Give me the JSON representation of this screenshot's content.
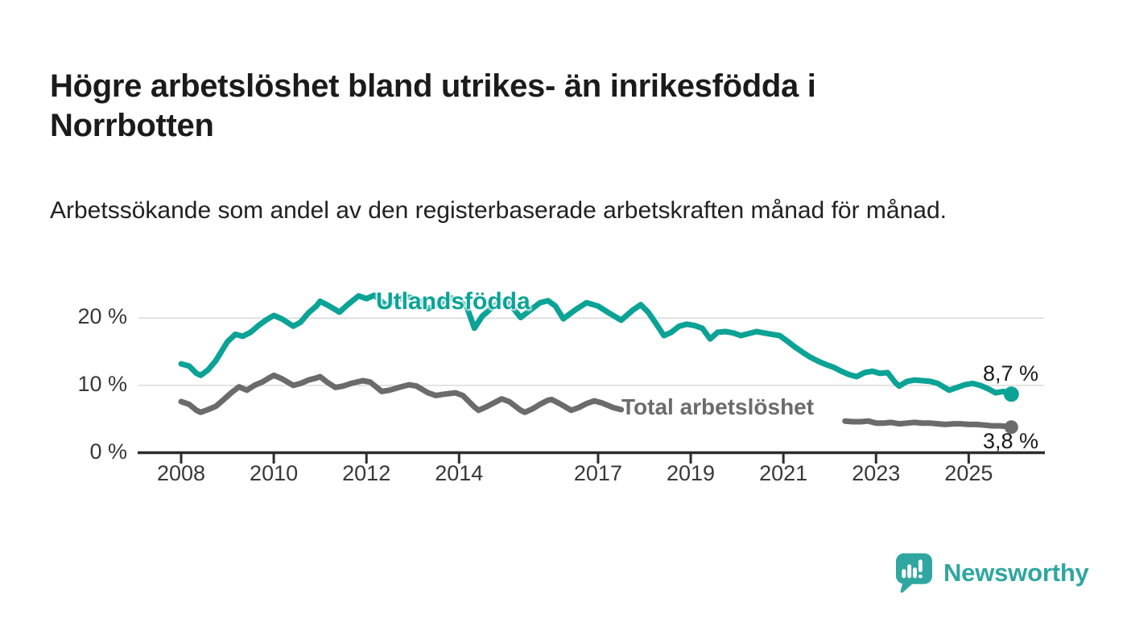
{
  "header": {
    "title": "Högre arbetslöshet bland utrikes- än inrikesfödda i Norrbotten",
    "subtitle": "Arbetssökande som andel av den registerbaserade arbetskraften månad för månad."
  },
  "chart_data": {
    "type": "line",
    "title": "Högre arbetslöshet bland utrikes- än inrikesfödda i Norrbotten",
    "subtitle": "Arbetssökande som andel av den registerbaserade arbetskraften månad för månad.",
    "x_unit": "year (monthly observations)",
    "y_unit": "percent of registered labour force",
    "xlim": [
      2007.1,
      2026.7
    ],
    "ylim": [
      0,
      24
    ],
    "grid": "horizontal",
    "legend_position": "inline-labels-on-lines",
    "yticks": [
      {
        "value": 0,
        "label": "0 %"
      },
      {
        "value": 10,
        "label": "10 %"
      },
      {
        "value": 20,
        "label": "20 %"
      }
    ],
    "xticks": [
      {
        "value": 2008,
        "label": "2008"
      },
      {
        "value": 2010,
        "label": "2010"
      },
      {
        "value": 2012,
        "label": "2012"
      },
      {
        "value": 2014,
        "label": "2014"
      },
      {
        "value": 2017,
        "label": "2017"
      },
      {
        "value": 2019,
        "label": "2019"
      },
      {
        "value": 2021,
        "label": "2021"
      },
      {
        "value": 2023,
        "label": "2023"
      },
      {
        "value": 2025,
        "label": "2025"
      }
    ],
    "series": [
      {
        "name": "Utlandsfödda",
        "color": "#0ba396",
        "end_label": "8,7 %",
        "end_value": 8.7,
        "end_dot": true,
        "segments": [
          [
            [
              2008.0,
              13.2
            ],
            [
              2008.17,
              12.9
            ],
            [
              2008.33,
              11.8
            ],
            [
              2008.42,
              11.5
            ],
            [
              2008.58,
              12.3
            ],
            [
              2008.75,
              13.7
            ],
            [
              2008.92,
              15.6
            ],
            [
              2009.0,
              16.5
            ],
            [
              2009.17,
              17.6
            ],
            [
              2009.33,
              17.3
            ],
            [
              2009.5,
              17.9
            ],
            [
              2009.67,
              18.9
            ],
            [
              2009.83,
              19.7
            ],
            [
              2010.0,
              20.4
            ],
            [
              2010.17,
              19.9
            ],
            [
              2010.42,
              18.8
            ],
            [
              2010.58,
              19.4
            ],
            [
              2010.75,
              20.8
            ],
            [
              2010.92,
              21.8
            ],
            [
              2011.0,
              22.5
            ],
            [
              2011.17,
              21.9
            ],
            [
              2011.42,
              20.9
            ],
            [
              2011.58,
              21.9
            ],
            [
              2011.83,
              23.3
            ],
            [
              2012.0,
              22.9
            ],
            [
              2012.17,
              23.4
            ],
            [
              2012.42,
              21.9
            ],
            [
              2012.58,
              22.4
            ],
            [
              2012.83,
              23.2
            ],
            [
              2013.0,
              23.0
            ],
            [
              2013.17,
              22.5
            ],
            [
              2013.33,
              21.4
            ],
            [
              2013.58,
              22.2
            ],
            [
              2013.83,
              23.0
            ],
            [
              2014.0,
              22.6
            ],
            [
              2014.17,
              21.6
            ],
            [
              2014.33,
              18.5
            ],
            [
              2014.5,
              20.3
            ],
            [
              2014.75,
              21.8
            ],
            [
              2014.92,
              22.5
            ],
            [
              2015.08,
              22.2
            ],
            [
              2015.33,
              20.1
            ],
            [
              2015.5,
              21.0
            ],
            [
              2015.75,
              22.3
            ],
            [
              2015.92,
              22.6
            ],
            [
              2016.08,
              21.8
            ],
            [
              2016.25,
              19.9
            ],
            [
              2016.5,
              21.2
            ],
            [
              2016.75,
              22.3
            ],
            [
              2017.0,
              21.8
            ],
            [
              2017.25,
              20.7
            ],
            [
              2017.5,
              19.7
            ],
            [
              2017.75,
              21.2
            ],
            [
              2017.92,
              22.0
            ],
            [
              2018.08,
              20.9
            ],
            [
              2018.25,
              19.2
            ],
            [
              2018.42,
              17.4
            ],
            [
              2018.58,
              17.9
            ],
            [
              2018.75,
              18.8
            ],
            [
              2018.92,
              19.1
            ],
            [
              2019.08,
              18.9
            ],
            [
              2019.25,
              18.5
            ],
            [
              2019.42,
              16.9
            ],
            [
              2019.58,
              17.9
            ],
            [
              2019.75,
              18.0
            ],
            [
              2019.92,
              17.8
            ],
            [
              2020.08,
              17.4
            ],
            [
              2020.25,
              17.7
            ],
            [
              2020.42,
              18.0
            ],
            [
              2020.58,
              17.8
            ],
            [
              2020.75,
              17.6
            ],
            [
              2020.92,
              17.4
            ],
            [
              2021.08,
              16.6
            ],
            [
              2021.25,
              15.7
            ],
            [
              2021.42,
              14.9
            ],
            [
              2021.58,
              14.2
            ],
            [
              2021.75,
              13.6
            ],
            [
              2021.92,
              13.1
            ],
            [
              2022.08,
              12.7
            ],
            [
              2022.25,
              12.1
            ],
            [
              2022.42,
              11.6
            ],
            [
              2022.58,
              11.3
            ],
            [
              2022.75,
              11.9
            ],
            [
              2022.92,
              12.1
            ],
            [
              2023.08,
              11.8
            ],
            [
              2023.25,
              11.9
            ],
            [
              2023.42,
              10.4
            ],
            [
              2023.5,
              9.9
            ],
            [
              2023.67,
              10.6
            ],
            [
              2023.83,
              10.8
            ],
            [
              2024.0,
              10.7
            ],
            [
              2024.17,
              10.6
            ],
            [
              2024.33,
              10.3
            ],
            [
              2024.5,
              9.6
            ],
            [
              2024.58,
              9.3
            ],
            [
              2024.75,
              9.7
            ],
            [
              2024.92,
              10.1
            ],
            [
              2025.08,
              10.3
            ],
            [
              2025.25,
              10.0
            ],
            [
              2025.42,
              9.5
            ],
            [
              2025.58,
              8.9
            ],
            [
              2025.75,
              9.1
            ],
            [
              2025.92,
              8.7
            ]
          ]
        ]
      },
      {
        "name": "Total arbetslöshet",
        "color": "#6b6b6b",
        "end_label": "3,8 %",
        "end_value": 3.8,
        "end_dot": true,
        "note": "line is hidden behind its inline label between ~2017.5 and ~2022.3",
        "segments": [
          [
            [
              2008.0,
              7.6
            ],
            [
              2008.17,
              7.2
            ],
            [
              2008.33,
              6.3
            ],
            [
              2008.42,
              6.0
            ],
            [
              2008.58,
              6.4
            ],
            [
              2008.75,
              6.9
            ],
            [
              2008.92,
              7.9
            ],
            [
              2009.08,
              8.9
            ],
            [
              2009.25,
              9.8
            ],
            [
              2009.42,
              9.3
            ],
            [
              2009.58,
              10.0
            ],
            [
              2009.75,
              10.5
            ],
            [
              2009.92,
              11.2
            ],
            [
              2010.0,
              11.5
            ],
            [
              2010.17,
              11.0
            ],
            [
              2010.42,
              10.0
            ],
            [
              2010.58,
              10.3
            ],
            [
              2010.75,
              10.8
            ],
            [
              2010.92,
              11.1
            ],
            [
              2011.0,
              11.3
            ],
            [
              2011.17,
              10.4
            ],
            [
              2011.33,
              9.7
            ],
            [
              2011.5,
              9.9
            ],
            [
              2011.67,
              10.3
            ],
            [
              2011.92,
              10.7
            ],
            [
              2012.08,
              10.5
            ],
            [
              2012.33,
              9.1
            ],
            [
              2012.5,
              9.3
            ],
            [
              2012.75,
              9.8
            ],
            [
              2012.92,
              10.1
            ],
            [
              2013.08,
              9.9
            ],
            [
              2013.33,
              8.9
            ],
            [
              2013.5,
              8.5
            ],
            [
              2013.67,
              8.7
            ],
            [
              2013.92,
              8.9
            ],
            [
              2014.08,
              8.5
            ],
            [
              2014.33,
              6.8
            ],
            [
              2014.42,
              6.3
            ],
            [
              2014.58,
              6.8
            ],
            [
              2014.75,
              7.4
            ],
            [
              2014.92,
              8.0
            ],
            [
              2015.08,
              7.6
            ],
            [
              2015.33,
              6.3
            ],
            [
              2015.42,
              6.0
            ],
            [
              2015.58,
              6.5
            ],
            [
              2015.75,
              7.2
            ],
            [
              2015.92,
              7.8
            ],
            [
              2016.0,
              7.9
            ],
            [
              2016.17,
              7.3
            ],
            [
              2016.42,
              6.3
            ],
            [
              2016.58,
              6.7
            ],
            [
              2016.75,
              7.3
            ],
            [
              2016.92,
              7.7
            ],
            [
              2017.08,
              7.4
            ],
            [
              2017.33,
              6.7
            ],
            [
              2017.5,
              6.4
            ]
          ],
          [
            [
              2022.33,
              4.7
            ],
            [
              2022.5,
              4.6
            ],
            [
              2022.67,
              4.6
            ],
            [
              2022.83,
              4.7
            ],
            [
              2023.0,
              4.4
            ],
            [
              2023.17,
              4.4
            ],
            [
              2023.33,
              4.5
            ],
            [
              2023.5,
              4.3
            ],
            [
              2023.67,
              4.4
            ],
            [
              2023.83,
              4.5
            ],
            [
              2024.0,
              4.4
            ],
            [
              2024.17,
              4.4
            ],
            [
              2024.33,
              4.3
            ],
            [
              2024.5,
              4.2
            ],
            [
              2024.67,
              4.3
            ],
            [
              2024.83,
              4.3
            ],
            [
              2025.0,
              4.2
            ],
            [
              2025.17,
              4.2
            ],
            [
              2025.33,
              4.1
            ],
            [
              2025.5,
              4.0
            ],
            [
              2025.67,
              4.0
            ],
            [
              2025.83,
              3.9
            ],
            [
              2025.92,
              3.8
            ]
          ]
        ]
      }
    ],
    "colors": {
      "grid": "#d9d9d9",
      "axis": "#2d2d2d",
      "tick_text": "#383838",
      "value_label_text": "#191919"
    }
  },
  "footer": {
    "brand": "Newsworthy",
    "brand_color": "#2fa7a0",
    "logo_icon": "speech-bubble-bar-chart-icon"
  }
}
